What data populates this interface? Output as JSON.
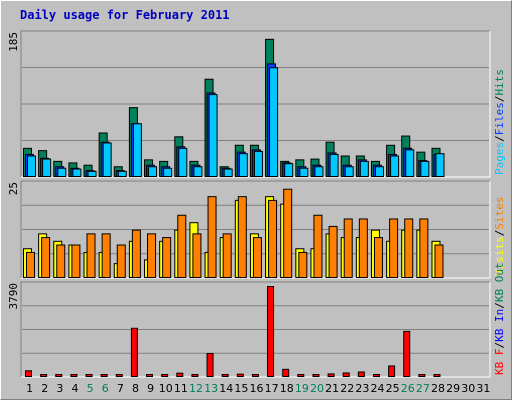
{
  "title": "Daily usage for February 2011",
  "colors": {
    "background": "#C0C0C0",
    "title": "#0000C0",
    "hits": "#00805C",
    "files": "#0040FF",
    "pages": "#00C8FF",
    "visits": "#FFFF00",
    "sites": "#FF8000",
    "kb_f": "#FF0000",
    "kb_in": "#0000FF",
    "kb_out": "#00805C",
    "weekend_day": "#00805C",
    "weekday_day": "#000000"
  },
  "chart_data": [
    {
      "type": "bar",
      "name": "hits-files-pages",
      "ymax_label": "185",
      "ylim": [
        0,
        185
      ],
      "legend": [
        {
          "label": "Pages",
          "color": "#00C8FF"
        },
        {
          "label": "Files",
          "color": "#0040FF"
        },
        {
          "label": "Hits",
          "color": "#00805C"
        }
      ],
      "days": [
        1,
        2,
        3,
        4,
        5,
        6,
        7,
        8,
        9,
        10,
        11,
        12,
        13,
        14,
        15,
        16,
        17,
        18,
        19,
        20,
        21,
        22,
        23,
        24,
        25,
        26,
        27,
        28,
        29,
        30,
        31
      ],
      "series": [
        {
          "name": "Hits",
          "values": [
            38,
            35,
            21,
            19,
            16,
            58,
            14,
            91,
            23,
            21,
            53,
            21,
            128,
            14,
            42,
            42,
            180,
            21,
            23,
            24,
            46,
            28,
            28,
            21,
            42,
            54,
            33,
            38,
            0,
            0,
            0
          ]
        },
        {
          "name": "Files",
          "values": [
            30,
            25,
            14,
            12,
            9,
            46,
            9,
            70,
            16,
            14,
            40,
            16,
            110,
            12,
            33,
            36,
            148,
            19,
            14,
            16,
            32,
            16,
            23,
            16,
            30,
            38,
            22,
            30,
            0,
            0,
            0
          ]
        },
        {
          "name": "Pages",
          "values": [
            28,
            24,
            12,
            11,
            8,
            45,
            8,
            70,
            14,
            12,
            38,
            14,
            108,
            11,
            31,
            34,
            143,
            18,
            12,
            14,
            30,
            14,
            21,
            14,
            28,
            36,
            21,
            31,
            0,
            0,
            0
          ]
        }
      ]
    },
    {
      "type": "bar",
      "name": "visits-sites",
      "ymax_label": "25",
      "ylim": [
        0,
        25
      ],
      "legend": [
        {
          "label": "Visits",
          "color": "#FFFF00"
        },
        {
          "label": "Sites",
          "color": "#FF8000"
        }
      ],
      "days": [
        1,
        2,
        3,
        4,
        5,
        6,
        7,
        8,
        9,
        10,
        11,
        12,
        13,
        14,
        15,
        16,
        17,
        18,
        19,
        20,
        21,
        22,
        23,
        24,
        25,
        26,
        27,
        28,
        29,
        30,
        31
      ],
      "series": [
        {
          "name": "Visits",
          "values": [
            8,
            12,
            10,
            9,
            7,
            7,
            4,
            10,
            5,
            10,
            13,
            15,
            7,
            11,
            21,
            12,
            22,
            20,
            8,
            8,
            12,
            11,
            11,
            13,
            10,
            13,
            13,
            10,
            0,
            0,
            0
          ]
        },
        {
          "name": "Sites",
          "values": [
            7,
            11,
            9,
            9,
            12,
            12,
            9,
            13,
            12,
            11,
            17,
            12,
            22,
            12,
            22,
            11,
            21,
            24,
            7,
            17,
            14,
            16,
            16,
            11,
            16,
            16,
            16,
            9,
            0,
            0,
            0
          ]
        }
      ]
    },
    {
      "type": "bar",
      "name": "kbytes",
      "ymax_label": "3790",
      "ylim": [
        0,
        3790
      ],
      "legend": [
        {
          "label": "KB F",
          "color": "#FF0000"
        },
        {
          "label": "KB In",
          "color": "#0000FF"
        },
        {
          "label": "KB Out",
          "color": "#00805C"
        }
      ],
      "days": [
        1,
        2,
        3,
        4,
        5,
        6,
        7,
        8,
        9,
        10,
        11,
        12,
        13,
        14,
        15,
        16,
        17,
        18,
        19,
        20,
        21,
        22,
        23,
        24,
        25,
        26,
        27,
        28,
        29,
        30,
        31
      ],
      "series": [
        {
          "name": "KB F",
          "values": [
            280,
            110,
            80,
            80,
            120,
            100,
            90,
            2050,
            100,
            100,
            180,
            90,
            1000,
            90,
            140,
            110,
            3790,
            340,
            80,
            80,
            150,
            190,
            230,
            90,
            480,
            1920,
            100,
            80,
            0,
            0,
            0
          ]
        }
      ]
    }
  ],
  "x_labels": [
    {
      "text": "1",
      "weekend": false
    },
    {
      "text": "2",
      "weekend": false
    },
    {
      "text": "3",
      "weekend": false
    },
    {
      "text": "4",
      "weekend": false
    },
    {
      "text": "5",
      "weekend": true
    },
    {
      "text": "6",
      "weekend": true
    },
    {
      "text": "7",
      "weekend": false
    },
    {
      "text": "8",
      "weekend": false
    },
    {
      "text": "9",
      "weekend": false
    },
    {
      "text": "10",
      "weekend": false
    },
    {
      "text": "11",
      "weekend": false
    },
    {
      "text": "12",
      "weekend": true
    },
    {
      "text": "13",
      "weekend": true
    },
    {
      "text": "14",
      "weekend": false
    },
    {
      "text": "15",
      "weekend": false
    },
    {
      "text": "16",
      "weekend": false
    },
    {
      "text": "17",
      "weekend": false
    },
    {
      "text": "18",
      "weekend": false
    },
    {
      "text": "19",
      "weekend": true
    },
    {
      "text": "20",
      "weekend": true
    },
    {
      "text": "21",
      "weekend": false
    },
    {
      "text": "22",
      "weekend": false
    },
    {
      "text": "23",
      "weekend": false
    },
    {
      "text": "24",
      "weekend": false
    },
    {
      "text": "25",
      "weekend": false
    },
    {
      "text": "26",
      "weekend": true
    },
    {
      "text": "27",
      "weekend": true
    },
    {
      "text": "28",
      "weekend": false
    },
    {
      "text": "29",
      "weekend": false
    },
    {
      "text": "30",
      "weekend": false
    },
    {
      "text": "31",
      "weekend": false
    }
  ]
}
